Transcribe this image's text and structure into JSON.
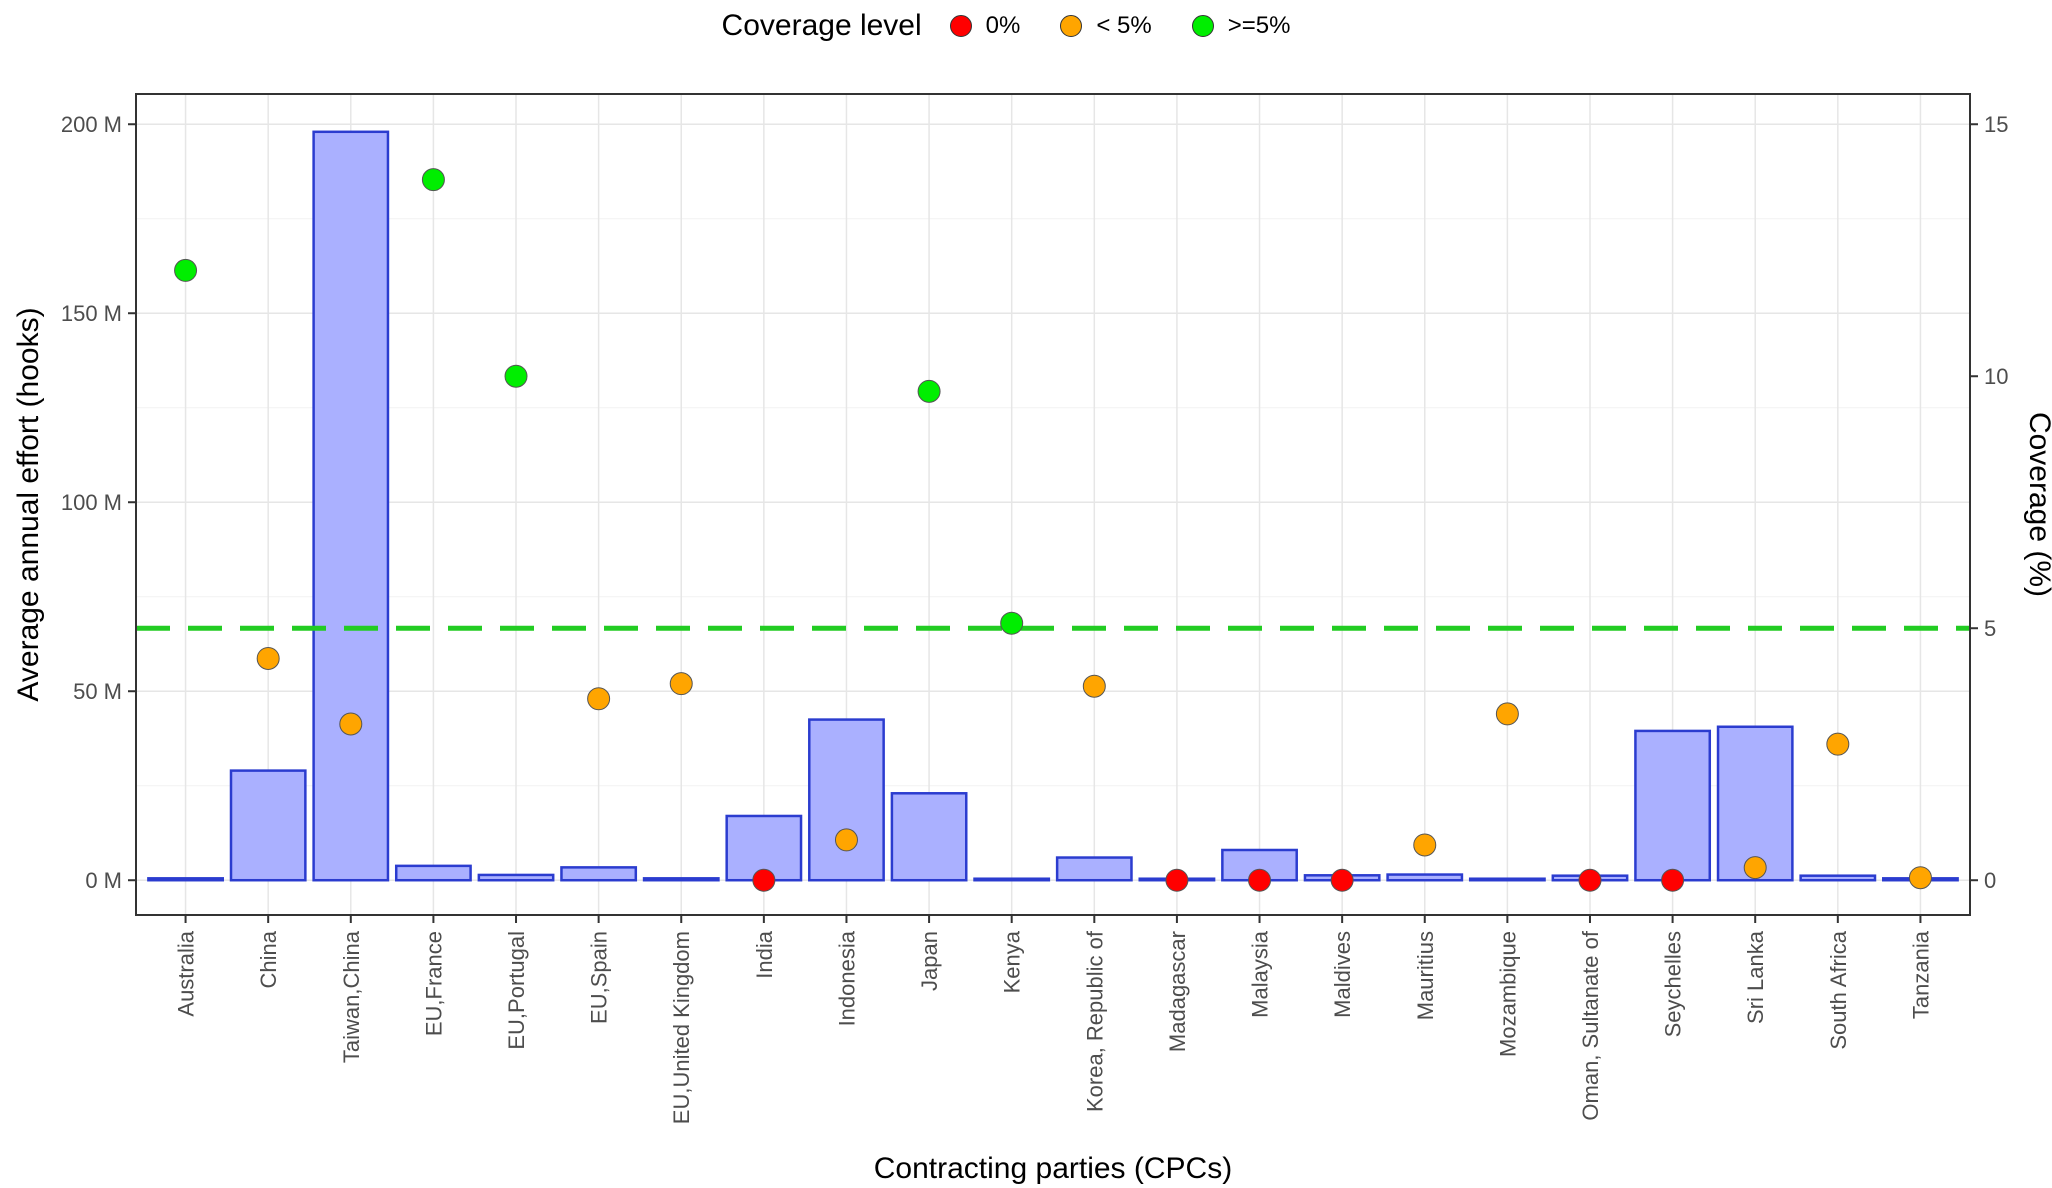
{
  "chart_data": {
    "type": "bar",
    "xlabel": "Contracting parties (CPCs)",
    "ylabel": "Average annual effort (hooks)",
    "y2label": "Coverage (%)",
    "ylim": [
      -9.2,
      208
    ],
    "y_ticks": [
      0,
      50,
      100,
      150,
      200
    ],
    "y_tick_labels": [
      "0 M",
      "50 M",
      "100 M",
      "150 M",
      "200 M"
    ],
    "y2lim": [
      -0.69,
      15.6
    ],
    "y2_ticks": [
      0,
      5,
      10,
      15
    ],
    "y2_tick_labels": [
      "0",
      "5",
      "10",
      "15"
    ],
    "threshold_line": {
      "y2": 5,
      "style": "dashed",
      "color": "#22cc22"
    },
    "grid": true,
    "legend": {
      "title": "Coverage level",
      "placement": "top",
      "items": [
        {
          "label": "0%",
          "color": "#ff0000"
        },
        {
          "label": "< 5%",
          "color": "#ffa500"
        },
        {
          "label": ">=5%",
          "color": "#00ee00"
        }
      ]
    },
    "bar_color": "#aab0ff",
    "bar_edge_color": "#2b3ccf",
    "categories": [
      "Australia",
      "China",
      "Taiwan,China",
      "EU,France",
      "EU,Portugal",
      "EU,Spain",
      "EU,United Kingdom",
      "India",
      "Indonesia",
      "Japan",
      "Kenya",
      "Korea, Republic of",
      "Madagascar",
      "Malaysia",
      "Maldives",
      "Mauritius",
      "Mozambique",
      "Oman, Sultanate of",
      "Seychelles",
      "Sri Lanka",
      "South Africa",
      "Tanzania"
    ],
    "series": [
      {
        "name": "Average annual effort (hooks, M)",
        "axis": "left",
        "type": "bar",
        "values": [
          0.5,
          29,
          198,
          3.8,
          1.4,
          3.4,
          0.5,
          17,
          42.5,
          23,
          0.3,
          6,
          0.3,
          8,
          1.3,
          1.5,
          0.3,
          1.2,
          39.5,
          40.6,
          1.2,
          0.5
        ]
      },
      {
        "name": "Coverage (%)",
        "axis": "right",
        "type": "scatter",
        "values": [
          12.1,
          4.4,
          3.1,
          13.9,
          10.0,
          3.6,
          3.9,
          0,
          0.8,
          9.7,
          5.1,
          3.85,
          0,
          0,
          0,
          0.7,
          3.3,
          0,
          0,
          0.25,
          2.7,
          0.05
        ],
        "levels": [
          "high",
          "low",
          "low",
          "high",
          "high",
          "low",
          "low",
          "zero",
          "low",
          "high",
          "high",
          "low",
          "zero",
          "zero",
          "zero",
          "low",
          "low",
          "zero",
          "zero",
          "low",
          "low",
          "low"
        ]
      }
    ]
  }
}
